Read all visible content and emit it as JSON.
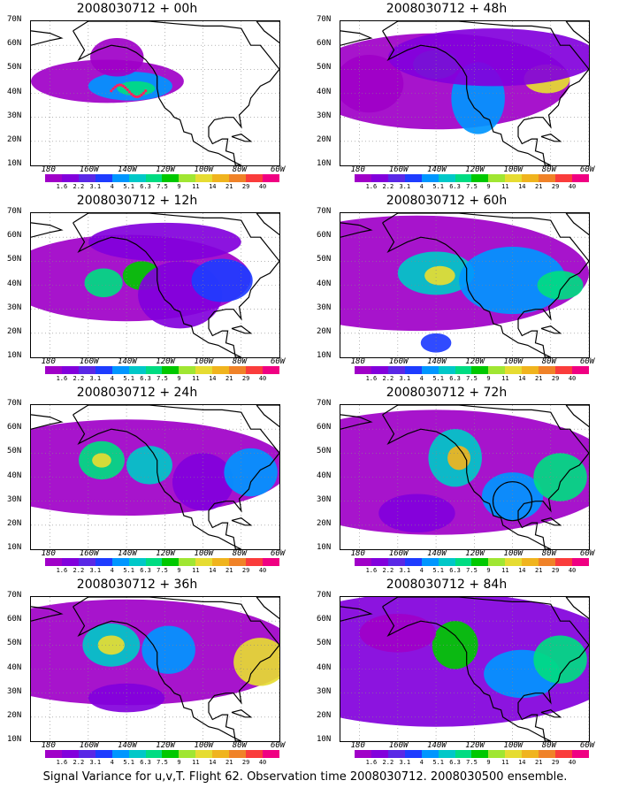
{
  "caption": "Signal Variance for u,v,T. Flight 62. Observation time 2008030712. 2008030500 ensemble.",
  "axes": {
    "lat_labels": [
      "70N",
      "60N",
      "50N",
      "40N",
      "30N",
      "20N",
      "10N"
    ],
    "lon_labels": [
      "180",
      "160W",
      "140W",
      "120W",
      "100W",
      "80W",
      "60W"
    ]
  },
  "colorbar": {
    "labels": [
      "1.6",
      "2.2",
      "3.1",
      "4",
      "5.1",
      "6.3",
      "7.5",
      "9",
      "11",
      "14",
      "21",
      "29",
      "40"
    ],
    "colors": [
      "#a000c8",
      "#8200dc",
      "#1e3cff",
      "#0096ff",
      "#00c8c8",
      "#00dc82",
      "#00c800",
      "#a0e632",
      "#e6dc32",
      "#f0b41e",
      "#f08228",
      "#fa3c3c",
      "#f00082"
    ]
  },
  "panels": [
    {
      "title": "2008030712 + 00h"
    },
    {
      "title": "2008030712 + 48h"
    },
    {
      "title": "2008030712 + 12h"
    },
    {
      "title": "2008030712 + 60h"
    },
    {
      "title": "2008030712 + 24h"
    },
    {
      "title": "2008030712 + 72h"
    },
    {
      "title": "2008030712 + 36h"
    },
    {
      "title": "2008030712 + 84h"
    }
  ]
}
